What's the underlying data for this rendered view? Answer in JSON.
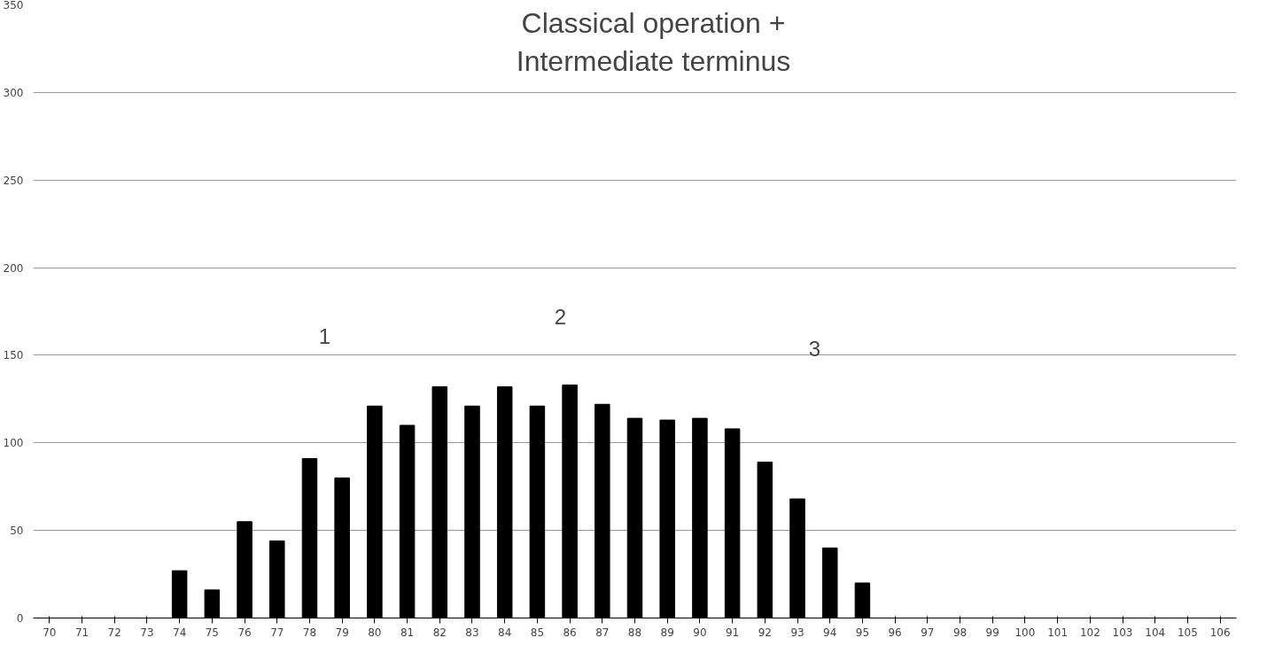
{
  "chart_data": {
    "type": "bar",
    "title": "Classical operation +\nIntermediate terminus",
    "categories": [
      "70",
      "71",
      "72",
      "73",
      "74",
      "75",
      "76",
      "77",
      "78",
      "79",
      "80",
      "81",
      "82",
      "83",
      "84",
      "85",
      "86",
      "87",
      "88",
      "89",
      "90",
      "91",
      "92",
      "93",
      "94",
      "95",
      "96",
      "97",
      "98",
      "99",
      "100",
      "101",
      "102",
      "103",
      "104",
      "105",
      "106"
    ],
    "values": [
      0,
      0,
      0,
      0,
      27,
      16,
      55,
      44,
      91,
      80,
      121,
      110,
      132,
      121,
      132,
      121,
      133,
      122,
      114,
      113,
      114,
      108,
      89,
      68,
      40,
      20,
      0,
      0,
      0,
      0,
      0,
      0,
      0,
      0,
      0,
      0,
      0
    ],
    "color": "#000000",
    "ylim": [
      0,
      350
    ],
    "yticks": [
      0,
      50,
      100,
      150,
      200,
      250,
      300,
      350
    ],
    "grid": "y",
    "annotations": [
      "1",
      "2",
      "3"
    ]
  }
}
